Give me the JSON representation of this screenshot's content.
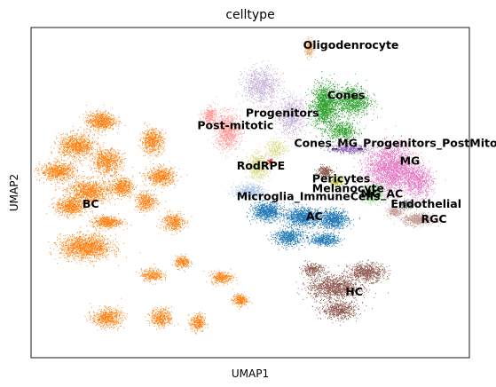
{
  "chart_data": {
    "type": "scatter",
    "title": "celltype",
    "xlabel": "UMAP1",
    "ylabel": "UMAP2",
    "grid": false,
    "ticks": false,
    "legend": "on-data",
    "clusters": [
      {
        "name": "Oligodenrocyte",
        "color": "#e8a468",
        "label": [
          0.45,
          0.96
        ],
        "blobs": [
          [
            0.47,
            0.95,
            0.012,
            0.03,
            220
          ]
        ]
      },
      {
        "name": "Cones",
        "color": "#2ca02c",
        "label": [
          0.53,
          0.76
        ],
        "blobs": [
          [
            0.52,
            0.72,
            0.035,
            0.07,
            1400
          ],
          [
            0.61,
            0.74,
            0.05,
            0.05,
            1000
          ],
          [
            0.58,
            0.62,
            0.04,
            0.03,
            500
          ]
        ]
      },
      {
        "name": "Progenitors",
        "color": "#c5b0d5",
        "label": [
          0.26,
          0.69
        ],
        "blobs": [
          [
            0.31,
            0.8,
            0.05,
            0.06,
            900
          ],
          [
            0.41,
            0.68,
            0.04,
            0.06,
            800
          ]
        ]
      },
      {
        "name": "Post-mitotic",
        "color": "#ff9896",
        "label": [
          0.1,
          0.64
        ],
        "blobs": [
          [
            0.2,
            0.62,
            0.035,
            0.06,
            900
          ],
          [
            0.14,
            0.68,
            0.02,
            0.03,
            300
          ]
        ]
      },
      {
        "name": "Cones_MG_Progenitors_PostMitotic",
        "color": "#9467bd",
        "label": [
          0.42,
          0.57
        ],
        "blobs": [
          [
            0.6,
            0.55,
            0.05,
            0.015,
            400
          ]
        ]
      },
      {
        "name": "MG",
        "color": "#e377c2",
        "label": [
          0.77,
          0.5
        ],
        "blobs": [
          [
            0.74,
            0.47,
            0.07,
            0.08,
            2400
          ],
          [
            0.83,
            0.42,
            0.04,
            0.05,
            700
          ]
        ]
      },
      {
        "name": "Rod",
        "color": "#dbdb8d",
        "label": [
          0.23,
          0.48
        ],
        "blobs": [
          [
            0.3,
            0.48,
            0.03,
            0.04,
            700
          ],
          [
            0.36,
            0.55,
            0.03,
            0.03,
            300
          ]
        ]
      },
      {
        "name": "RPE",
        "color": "#d62728",
        "label": [
          0.31,
          0.48
        ],
        "blobs": [
          [
            0.34,
            0.5,
            0.006,
            0.008,
            60
          ]
        ]
      },
      {
        "name": "Pericytes",
        "color": "#8c564b",
        "label": [
          0.48,
          0.43
        ],
        "blobs": [
          [
            0.52,
            0.46,
            0.02,
            0.02,
            250
          ]
        ]
      },
      {
        "name": "Melanocyte",
        "color": "#bcbd22",
        "label": [
          0.48,
          0.39
        ],
        "blobs": [
          [
            0.56,
            0.42,
            0.015,
            0.015,
            180
          ]
        ]
      },
      {
        "name": "Microglia_ImmuneCells",
        "color": "#aec7e8",
        "label": [
          0.23,
          0.36
        ],
        "blobs": [
          [
            0.27,
            0.38,
            0.04,
            0.025,
            600
          ]
        ]
      },
      {
        "name": "MG_AC",
        "color": "#98df8a",
        "label": [
          0.64,
          0.37
        ],
        "blobs": [
          [
            0.68,
            0.37,
            0.03,
            0.03,
            500
          ]
        ]
      },
      {
        "name": "Endothelial",
        "color": "#7f7f7f",
        "label": [
          0.74,
          0.33
        ],
        "blobs": [
          [
            0.79,
            0.33,
            0.02,
            0.015,
            250
          ]
        ]
      },
      {
        "name": "BC",
        "color": "#ff7f0e",
        "label": [
          -0.28,
          0.33
        ],
        "blobs": [
          [
            -0.22,
            0.66,
            0.04,
            0.03,
            700
          ],
          [
            -0.3,
            0.56,
            0.05,
            0.04,
            900
          ],
          [
            -0.2,
            0.5,
            0.04,
            0.04,
            700
          ],
          [
            -0.36,
            0.46,
            0.05,
            0.03,
            700
          ],
          [
            -0.26,
            0.38,
            0.06,
            0.04,
            1000
          ],
          [
            -0.15,
            0.4,
            0.03,
            0.03,
            500
          ],
          [
            -0.32,
            0.32,
            0.04,
            0.03,
            600
          ],
          [
            -0.2,
            0.26,
            0.04,
            0.02,
            500
          ],
          [
            -0.27,
            0.16,
            0.07,
            0.04,
            1400
          ],
          [
            -0.05,
            0.58,
            0.03,
            0.04,
            600
          ],
          [
            -0.02,
            0.44,
            0.04,
            0.03,
            600
          ],
          [
            -0.07,
            0.34,
            0.03,
            0.03,
            400
          ],
          [
            0.02,
            0.26,
            0.03,
            0.03,
            400
          ],
          [
            -0.2,
            -0.12,
            0.04,
            0.03,
            600
          ],
          [
            -0.02,
            -0.12,
            0.03,
            0.03,
            400
          ],
          [
            0.1,
            -0.14,
            0.02,
            0.03,
            300
          ],
          [
            0.18,
            0.04,
            0.03,
            0.02,
            300
          ],
          [
            0.24,
            -0.05,
            0.02,
            0.02,
            250
          ],
          [
            -0.05,
            0.05,
            0.03,
            0.02,
            300
          ],
          [
            0.05,
            0.1,
            0.02,
            0.02,
            250
          ]
        ]
      },
      {
        "name": "AC",
        "color": "#1f77b4",
        "label": [
          0.46,
          0.28
        ],
        "blobs": [
          [
            0.33,
            0.3,
            0.04,
            0.03,
            800
          ],
          [
            0.45,
            0.28,
            0.05,
            0.03,
            1000
          ],
          [
            0.55,
            0.27,
            0.04,
            0.03,
            800
          ],
          [
            0.4,
            0.2,
            0.04,
            0.03,
            600
          ],
          [
            0.52,
            0.19,
            0.04,
            0.02,
            500
          ]
        ]
      },
      {
        "name": "RGC",
        "color": "#c49c94",
        "label": [
          0.84,
          0.27
        ],
        "blobs": [
          [
            0.83,
            0.27,
            0.04,
            0.02,
            600
          ],
          [
            0.75,
            0.3,
            0.02,
            0.015,
            200
          ]
        ]
      },
      {
        "name": "HC",
        "color": "#8c564b",
        "label": [
          0.59,
          -0.02
        ],
        "blobs": [
          [
            0.55,
            0.0,
            0.07,
            0.04,
            1200
          ],
          [
            0.66,
            0.06,
            0.05,
            0.03,
            700
          ],
          [
            0.48,
            0.07,
            0.03,
            0.02,
            300
          ],
          [
            0.57,
            -0.09,
            0.05,
            0.03,
            600
          ]
        ]
      }
    ]
  }
}
